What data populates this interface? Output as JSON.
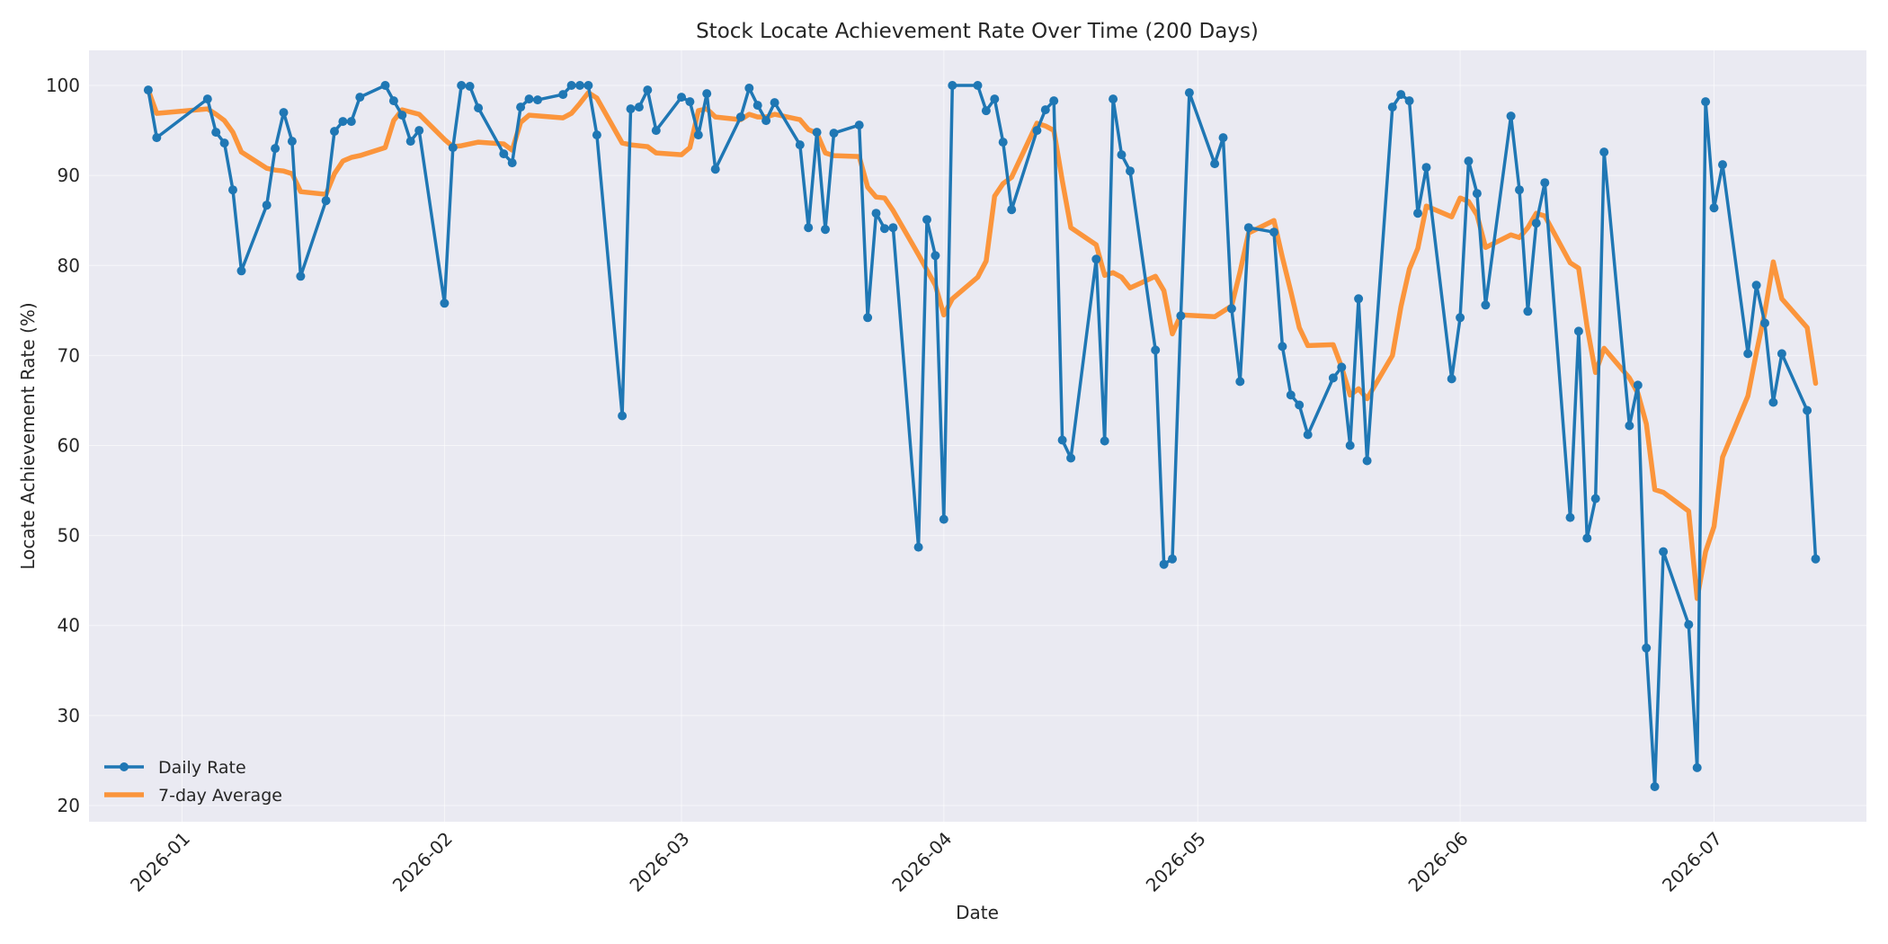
{
  "chart_data": {
    "type": "line",
    "title": "Stock Locate Achievement Rate Over Time (200 Days)",
    "xlabel": "Date",
    "ylabel": "Locate Achievement Rate (%)",
    "ylim": [
      18.2,
      103.9
    ],
    "xlim": [
      "2025-12-21",
      "2026-07-19"
    ],
    "x_ticks": [
      "2026-01",
      "2026-02",
      "2026-03",
      "2026-04",
      "2026-05",
      "2026-06",
      "2026-07"
    ],
    "y_ticks": [
      20,
      30,
      40,
      50,
      60,
      70,
      80,
      90,
      100
    ],
    "grid": true,
    "legend_position": "lower-left",
    "series": [
      {
        "name": "Daily Rate",
        "color": "#1f77b4",
        "marker": "circle",
        "points": [
          [
            "2025-12-28",
            99.5
          ],
          [
            "2025-12-29",
            94.2
          ],
          [
            "2026-01-04",
            98.5
          ],
          [
            "2026-01-05",
            94.8
          ],
          [
            "2026-01-06",
            93.6
          ],
          [
            "2026-01-07",
            88.4
          ],
          [
            "2026-01-08",
            79.4
          ],
          [
            "2026-01-11",
            86.7
          ],
          [
            "2026-01-12",
            93.0
          ],
          [
            "2026-01-13",
            97.0
          ],
          [
            "2026-01-14",
            93.8
          ],
          [
            "2026-01-15",
            78.8
          ],
          [
            "2026-01-18",
            87.2
          ],
          [
            "2026-01-19",
            94.9
          ],
          [
            "2026-01-20",
            96.0
          ],
          [
            "2026-01-21",
            96.0
          ],
          [
            "2026-01-22",
            98.7
          ],
          [
            "2026-01-25",
            100.0
          ],
          [
            "2026-01-26",
            98.3
          ],
          [
            "2026-01-27",
            96.7
          ],
          [
            "2026-01-28",
            93.8
          ],
          [
            "2026-01-29",
            95.0
          ],
          [
            "2026-02-01",
            75.8
          ],
          [
            "2026-02-02",
            93.1
          ],
          [
            "2026-02-03",
            100.0
          ],
          [
            "2026-02-04",
            99.9
          ],
          [
            "2026-02-05",
            97.5
          ],
          [
            "2026-02-08",
            92.4
          ],
          [
            "2026-02-09",
            91.4
          ],
          [
            "2026-02-10",
            97.6
          ],
          [
            "2026-02-11",
            98.5
          ],
          [
            "2026-02-12",
            98.4
          ],
          [
            "2026-02-15",
            99.0
          ],
          [
            "2026-02-16",
            100.0
          ],
          [
            "2026-02-17",
            100.0
          ],
          [
            "2026-02-18",
            100.0
          ],
          [
            "2026-02-19",
            94.5
          ],
          [
            "2026-02-22",
            63.3
          ],
          [
            "2026-02-23",
            97.4
          ],
          [
            "2026-02-24",
            97.6
          ],
          [
            "2026-02-25",
            99.5
          ],
          [
            "2026-02-26",
            95.0
          ],
          [
            "2026-03-01",
            98.7
          ],
          [
            "2026-03-02",
            98.2
          ],
          [
            "2026-03-03",
            94.5
          ],
          [
            "2026-03-04",
            99.1
          ],
          [
            "2026-03-05",
            90.7
          ],
          [
            "2026-03-08",
            96.5
          ],
          [
            "2026-03-09",
            99.7
          ],
          [
            "2026-03-10",
            97.8
          ],
          [
            "2026-03-11",
            96.1
          ],
          [
            "2026-03-12",
            98.1
          ],
          [
            "2026-03-15",
            93.4
          ],
          [
            "2026-03-16",
            84.2
          ],
          [
            "2026-03-17",
            94.8
          ],
          [
            "2026-03-18",
            84.0
          ],
          [
            "2026-03-19",
            94.7
          ],
          [
            "2026-03-22",
            95.6
          ],
          [
            "2026-03-23",
            74.2
          ],
          [
            "2026-03-24",
            85.8
          ],
          [
            "2026-03-25",
            84.1
          ],
          [
            "2026-03-26",
            84.2
          ],
          [
            "2026-03-29",
            48.7
          ],
          [
            "2026-03-30",
            85.1
          ],
          [
            "2026-03-31",
            81.1
          ],
          [
            "2026-04-01",
            51.8
          ],
          [
            "2026-04-02",
            100.0
          ],
          [
            "2026-04-05",
            100.0
          ],
          [
            "2026-04-06",
            97.2
          ],
          [
            "2026-04-07",
            98.5
          ],
          [
            "2026-04-08",
            93.7
          ],
          [
            "2026-04-09",
            86.2
          ],
          [
            "2026-04-12",
            95.0
          ],
          [
            "2026-04-13",
            97.3
          ],
          [
            "2026-04-14",
            98.3
          ],
          [
            "2026-04-15",
            60.6
          ],
          [
            "2026-04-16",
            58.6
          ],
          [
            "2026-04-19",
            80.7
          ],
          [
            "2026-04-20",
            60.5
          ],
          [
            "2026-04-21",
            98.5
          ],
          [
            "2026-04-22",
            92.3
          ],
          [
            "2026-04-23",
            90.5
          ],
          [
            "2026-04-26",
            70.6
          ],
          [
            "2026-04-27",
            46.8
          ],
          [
            "2026-04-28",
            47.4
          ],
          [
            "2026-04-29",
            74.4
          ],
          [
            "2026-04-30",
            99.2
          ],
          [
            "2026-05-03",
            91.3
          ],
          [
            "2026-05-04",
            94.2
          ],
          [
            "2026-05-05",
            75.2
          ],
          [
            "2026-05-06",
            67.1
          ],
          [
            "2026-05-07",
            84.2
          ],
          [
            "2026-05-10",
            83.7
          ],
          [
            "2026-05-11",
            71.0
          ],
          [
            "2026-05-12",
            65.6
          ],
          [
            "2026-05-13",
            64.5
          ],
          [
            "2026-05-14",
            61.2
          ],
          [
            "2026-05-17",
            67.5
          ],
          [
            "2026-05-18",
            68.7
          ],
          [
            "2026-05-19",
            60.0
          ],
          [
            "2026-05-20",
            76.3
          ],
          [
            "2026-05-21",
            58.3
          ],
          [
            "2026-05-24",
            97.6
          ],
          [
            "2026-05-25",
            99.0
          ],
          [
            "2026-05-26",
            98.3
          ],
          [
            "2026-05-27",
            85.8
          ],
          [
            "2026-05-28",
            90.9
          ],
          [
            "2026-05-31",
            67.4
          ],
          [
            "2026-06-01",
            74.2
          ],
          [
            "2026-06-02",
            91.6
          ],
          [
            "2026-06-03",
            88.0
          ],
          [
            "2026-06-04",
            75.6
          ],
          [
            "2026-06-07",
            96.6
          ],
          [
            "2026-06-08",
            88.4
          ],
          [
            "2026-06-09",
            74.9
          ],
          [
            "2026-06-10",
            84.7
          ],
          [
            "2026-06-11",
            89.2
          ],
          [
            "2026-06-14",
            52.0
          ],
          [
            "2026-06-15",
            72.7
          ],
          [
            "2026-06-16",
            49.7
          ],
          [
            "2026-06-17",
            54.1
          ],
          [
            "2026-06-18",
            92.6
          ],
          [
            "2026-06-21",
            62.2
          ],
          [
            "2026-06-22",
            66.7
          ],
          [
            "2026-06-23",
            37.5
          ],
          [
            "2026-06-24",
            22.1
          ],
          [
            "2026-06-25",
            48.2
          ],
          [
            "2026-06-28",
            40.1
          ],
          [
            "2026-06-29",
            24.2
          ],
          [
            "2026-06-30",
            98.2
          ],
          [
            "2026-07-01",
            86.4
          ],
          [
            "2026-07-02",
            91.2
          ],
          [
            "2026-07-05",
            70.2
          ],
          [
            "2026-07-06",
            77.8
          ],
          [
            "2026-07-07",
            73.6
          ],
          [
            "2026-07-08",
            64.8
          ],
          [
            "2026-07-09",
            70.2
          ],
          [
            "2026-07-12",
            63.9
          ],
          [
            "2026-07-13",
            47.4
          ]
        ]
      },
      {
        "name": "7-day Average",
        "color": "#ff7f0e",
        "points": [
          [
            "2025-12-28",
            99.5
          ],
          [
            "2025-12-29",
            96.9
          ],
          [
            "2026-01-04",
            97.4
          ],
          [
            "2026-01-05",
            96.8
          ],
          [
            "2026-01-06",
            96.1
          ],
          [
            "2026-01-07",
            94.8
          ],
          [
            "2026-01-08",
            92.6
          ],
          [
            "2026-01-11",
            90.8
          ],
          [
            "2026-01-12",
            90.6
          ],
          [
            "2026-01-13",
            90.5
          ],
          [
            "2026-01-14",
            90.2
          ],
          [
            "2026-01-15",
            88.2
          ],
          [
            "2026-01-18",
            87.9
          ],
          [
            "2026-01-19",
            90.2
          ],
          [
            "2026-01-20",
            91.6
          ],
          [
            "2026-01-21",
            92.0
          ],
          [
            "2026-01-22",
            92.2
          ],
          [
            "2026-01-25",
            93.1
          ],
          [
            "2026-01-26",
            96.1
          ],
          [
            "2026-01-27",
            97.3
          ],
          [
            "2026-01-29",
            96.8
          ],
          [
            "2026-02-01",
            94.0
          ],
          [
            "2026-02-02",
            93.2
          ],
          [
            "2026-02-03",
            93.3
          ],
          [
            "2026-02-05",
            93.7
          ],
          [
            "2026-02-08",
            93.5
          ],
          [
            "2026-02-09",
            92.8
          ],
          [
            "2026-02-10",
            95.9
          ],
          [
            "2026-02-11",
            96.7
          ],
          [
            "2026-02-15",
            96.4
          ],
          [
            "2026-02-16",
            96.9
          ],
          [
            "2026-02-17",
            98.0
          ],
          [
            "2026-02-18",
            99.2
          ],
          [
            "2026-02-19",
            98.6
          ],
          [
            "2026-02-22",
            93.6
          ],
          [
            "2026-02-23",
            93.4
          ],
          [
            "2026-02-25",
            93.2
          ],
          [
            "2026-02-26",
            92.5
          ],
          [
            "2026-03-01",
            92.3
          ],
          [
            "2026-03-02",
            93.1
          ],
          [
            "2026-03-03",
            97.2
          ],
          [
            "2026-03-04",
            97.4
          ],
          [
            "2026-03-05",
            96.5
          ],
          [
            "2026-03-08",
            96.2
          ],
          [
            "2026-03-09",
            96.8
          ],
          [
            "2026-03-10",
            96.5
          ],
          [
            "2026-03-11",
            96.5
          ],
          [
            "2026-03-12",
            96.8
          ],
          [
            "2026-03-15",
            96.2
          ],
          [
            "2026-03-16",
            95.1
          ],
          [
            "2026-03-17",
            94.7
          ],
          [
            "2026-03-18",
            92.5
          ],
          [
            "2026-03-19",
            92.2
          ],
          [
            "2026-03-22",
            92.1
          ],
          [
            "2026-03-23",
            88.7
          ],
          [
            "2026-03-24",
            87.6
          ],
          [
            "2026-03-25",
            87.5
          ],
          [
            "2026-03-26",
            86.1
          ],
          [
            "2026-03-29",
            81.2
          ],
          [
            "2026-03-30",
            79.5
          ],
          [
            "2026-03-31",
            77.8
          ],
          [
            "2026-04-01",
            74.5
          ],
          [
            "2026-04-02",
            76.3
          ],
          [
            "2026-04-05",
            78.7
          ],
          [
            "2026-04-06",
            80.5
          ],
          [
            "2026-04-07",
            87.7
          ],
          [
            "2026-04-08",
            89.1
          ],
          [
            "2026-04-09",
            89.8
          ],
          [
            "2026-04-12",
            95.8
          ],
          [
            "2026-04-13",
            95.5
          ],
          [
            "2026-04-14",
            95.0
          ],
          [
            "2026-04-15",
            89.4
          ],
          [
            "2026-04-16",
            84.2
          ],
          [
            "2026-04-19",
            82.3
          ],
          [
            "2026-04-20",
            78.9
          ],
          [
            "2026-04-21",
            79.2
          ],
          [
            "2026-04-22",
            78.7
          ],
          [
            "2026-04-23",
            77.5
          ],
          [
            "2026-04-26",
            78.8
          ],
          [
            "2026-04-27",
            77.2
          ],
          [
            "2026-04-28",
            72.4
          ],
          [
            "2026-04-29",
            74.5
          ],
          [
            "2026-05-03",
            74.3
          ],
          [
            "2026-05-04",
            74.9
          ],
          [
            "2026-05-05",
            75.5
          ],
          [
            "2026-05-06",
            79.3
          ],
          [
            "2026-05-07",
            83.6
          ],
          [
            "2026-05-10",
            85.0
          ],
          [
            "2026-05-11",
            80.9
          ],
          [
            "2026-05-12",
            77.1
          ],
          [
            "2026-05-13",
            73.1
          ],
          [
            "2026-05-14",
            71.1
          ],
          [
            "2026-05-17",
            71.2
          ],
          [
            "2026-05-18",
            68.7
          ],
          [
            "2026-05-19",
            65.6
          ],
          [
            "2026-05-20",
            66.3
          ],
          [
            "2026-05-21",
            65.2
          ],
          [
            "2026-05-24",
            70.0
          ],
          [
            "2026-05-25",
            75.4
          ],
          [
            "2026-05-26",
            79.6
          ],
          [
            "2026-05-27",
            81.9
          ],
          [
            "2026-05-28",
            86.6
          ],
          [
            "2026-05-31",
            85.4
          ],
          [
            "2026-06-01",
            87.5
          ],
          [
            "2026-06-02",
            87.1
          ],
          [
            "2026-06-03",
            85.6
          ],
          [
            "2026-06-04",
            82.0
          ],
          [
            "2026-06-07",
            83.4
          ],
          [
            "2026-06-08",
            83.1
          ],
          [
            "2026-06-09",
            84.2
          ],
          [
            "2026-06-10",
            85.8
          ],
          [
            "2026-06-11",
            85.5
          ],
          [
            "2026-06-14",
            80.3
          ],
          [
            "2026-06-15",
            79.7
          ],
          [
            "2026-06-16",
            73.2
          ],
          [
            "2026-06-17",
            68.1
          ],
          [
            "2026-06-18",
            70.8
          ],
          [
            "2026-06-21",
            67.5
          ],
          [
            "2026-06-22",
            65.8
          ],
          [
            "2026-06-23",
            62.4
          ],
          [
            "2026-06-24",
            55.1
          ],
          [
            "2026-06-25",
            54.8
          ],
          [
            "2026-06-28",
            52.7
          ],
          [
            "2026-06-29",
            43.0
          ],
          [
            "2026-06-30",
            48.2
          ],
          [
            "2026-07-01",
            51.0
          ],
          [
            "2026-07-02",
            58.7
          ],
          [
            "2026-07-05",
            65.5
          ],
          [
            "2026-07-06",
            70.3
          ],
          [
            "2026-07-07",
            74.8
          ],
          [
            "2026-07-08",
            80.4
          ],
          [
            "2026-07-09",
            76.3
          ],
          [
            "2026-07-12",
            73.1
          ],
          [
            "2026-07-13",
            66.9
          ]
        ]
      }
    ]
  }
}
